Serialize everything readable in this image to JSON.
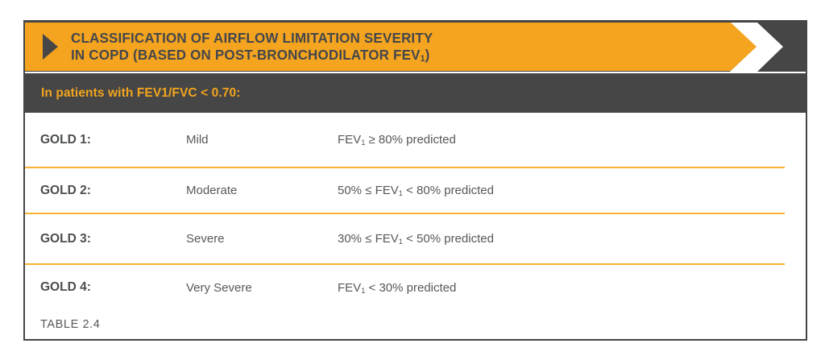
{
  "header": {
    "title_line1": "CLASSIFICATION OF AIRFLOW LIMITATION SEVERITY",
    "title_line2_pre": "IN COPD (BASED ON POST-BRONCHODILATOR FEV",
    "title_line2_sub": "1",
    "title_line2_post": ")",
    "subheader": "In patients with FEV1/FVC < 0.70:"
  },
  "colors": {
    "banner_orange": "#F4A41F",
    "dark_charcoal": "#464646",
    "separator_orange": "#F9B233",
    "title_text": "#45474B",
    "body_text": "#56585A",
    "subheader_orange": "#F2A51D"
  },
  "table": {
    "caption": "TABLE 2.4",
    "rows": [
      {
        "grade": "GOLD 1:",
        "severity": "Mild",
        "criteria_pre": "FEV",
        "criteria_sub": "1",
        "criteria_post": " ≥ 80% predicted"
      },
      {
        "grade": "GOLD 2:",
        "severity": "Moderate",
        "criteria_pre": "50% ≤ FEV",
        "criteria_sub": "1",
        "criteria_post": " < 80% predicted"
      },
      {
        "grade": "GOLD 3:",
        "severity": "Severe",
        "criteria_pre": "30% ≤ FEV",
        "criteria_sub": "1",
        "criteria_post": " < 50% predicted"
      },
      {
        "grade": "GOLD 4:",
        "severity": "Very Severe",
        "criteria_pre": "FEV",
        "criteria_sub": "1",
        "criteria_post": " < 30% predicted"
      }
    ]
  }
}
